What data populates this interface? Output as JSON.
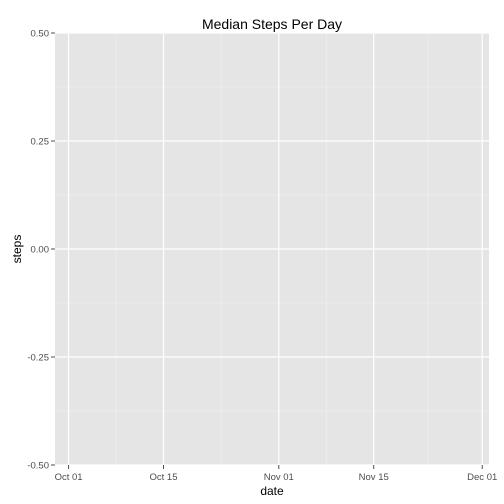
{
  "chart_data": {
    "type": "line",
    "title": "Median Steps Per Day",
    "xlabel": "date",
    "ylabel": "steps",
    "x_type": "date",
    "xlim": [
      "2012-09-29",
      "2012-12-02"
    ],
    "ylim": [
      -0.5,
      0.5
    ],
    "x_ticks": [
      {
        "value": "2012-10-01",
        "label": "Oct 01"
      },
      {
        "value": "2012-10-15",
        "label": "Oct 15"
      },
      {
        "value": "2012-11-01",
        "label": "Nov 01"
      },
      {
        "value": "2012-11-15",
        "label": "Nov 15"
      },
      {
        "value": "2012-12-01",
        "label": "Dec 01"
      }
    ],
    "y_ticks": [
      {
        "value": -0.5,
        "label": "-0.50"
      },
      {
        "value": -0.25,
        "label": "-0.25"
      },
      {
        "value": 0.0,
        "label": "0.00"
      },
      {
        "value": 0.25,
        "label": "0.25"
      },
      {
        "value": 0.5,
        "label": "0.50"
      }
    ],
    "grid": true,
    "panel_background": "#e5e5e5",
    "series": []
  }
}
